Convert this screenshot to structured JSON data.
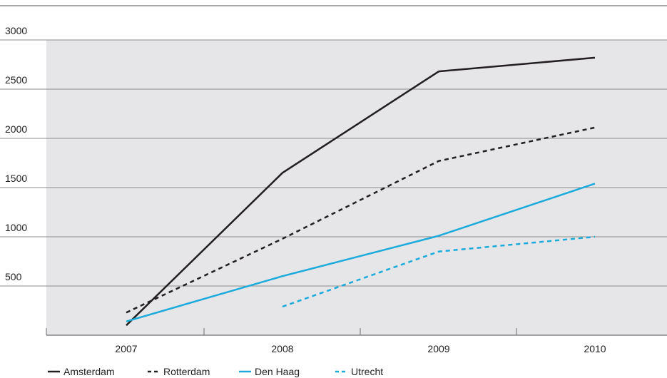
{
  "chart_data": {
    "type": "line",
    "categories": [
      "2007",
      "2008",
      "2009",
      "2010"
    ],
    "y_ticks": [
      500,
      1000,
      1500,
      2000,
      2500,
      3000
    ],
    "ylim": [
      0,
      3000
    ],
    "grid": "horizontal",
    "legend_position": "bottom",
    "series": [
      {
        "name": "Amsterdam",
        "color": "#231f20",
        "dash": "solid",
        "values": [
          100,
          1650,
          2680,
          2820
        ]
      },
      {
        "name": "Rotterdam",
        "color": "#231f20",
        "dash": "dashed",
        "values": [
          230,
          980,
          1770,
          2110
        ]
      },
      {
        "name": "Den Haag",
        "color": "#1aabdb",
        "dash": "solid",
        "values": [
          140,
          600,
          1010,
          1540
        ]
      },
      {
        "name": "Utrecht",
        "color": "#1aabdb",
        "dash": "dashed",
        "values": [
          null,
          290,
          850,
          1000
        ]
      }
    ]
  }
}
